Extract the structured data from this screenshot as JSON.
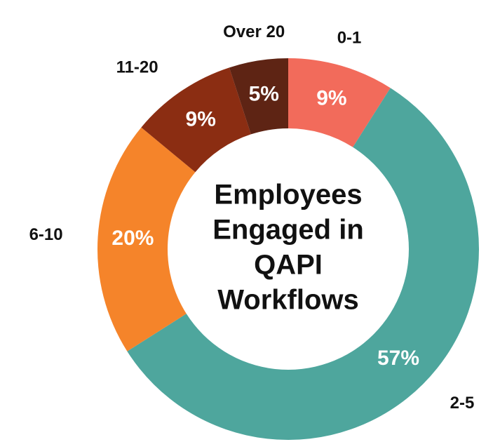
{
  "chart_data": {
    "type": "donut",
    "title": [
      "Employees",
      "Engaged in",
      "QAPI",
      "Workflows"
    ],
    "categories": [
      "0-1",
      "2-5",
      "6-10",
      "11-20",
      "Over 20"
    ],
    "values": [
      9,
      57,
      20,
      9,
      5
    ],
    "value_labels": [
      "9%",
      "57%",
      "20%",
      "9%",
      "5%"
    ],
    "colors": [
      "#f26b5b",
      "#4ea69d",
      "#f5842a",
      "#8b2d12",
      "#5e2414"
    ]
  }
}
